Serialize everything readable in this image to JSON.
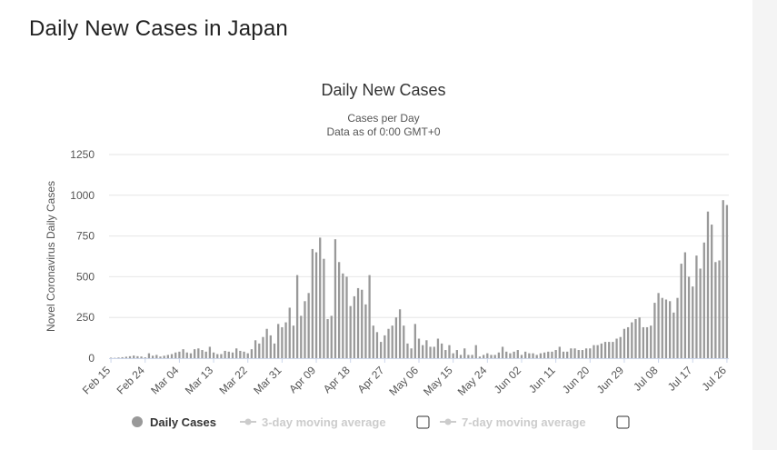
{
  "page": {
    "title": "Daily New Cases in Japan"
  },
  "chart_data": {
    "type": "bar",
    "title": "Daily New Cases",
    "subtitle_lines": [
      "Cases per Day",
      "Data as of 0:00 GMT+0"
    ],
    "ylabel": "Novel Coronavirus Daily Cases",
    "xlabel": "",
    "ylim": [
      0,
      1250
    ],
    "yticks": [
      0,
      250,
      500,
      750,
      1000,
      1250
    ],
    "grid": true,
    "legend_position": "bottom",
    "bar_color": "#999999",
    "start_date": "Feb 15",
    "xtick_labels": [
      "Feb 15",
      "Feb 24",
      "Mar 04",
      "Mar 13",
      "Mar 22",
      "Mar 31",
      "Apr 09",
      "Apr 18",
      "Apr 27",
      "May 06",
      "May 15",
      "May 24",
      "Jun 02",
      "Jun 11",
      "Jun 20",
      "Jun 29",
      "Jul 08",
      "Jul 17",
      "Jul 26"
    ],
    "legend": [
      {
        "label": "Daily Cases",
        "active": true,
        "color": "#999999"
      },
      {
        "label": "3-day moving average",
        "active": false,
        "color": "#cccccc"
      },
      {
        "label": "7-day moving average",
        "active": false,
        "color": "#cccccc"
      }
    ],
    "values": [
      3,
      2,
      4,
      6,
      9,
      12,
      16,
      12,
      10,
      5,
      30,
      15,
      20,
      10,
      15,
      20,
      25,
      35,
      40,
      55,
      35,
      30,
      55,
      60,
      50,
      40,
      70,
      35,
      25,
      25,
      45,
      40,
      35,
      60,
      45,
      40,
      30,
      55,
      110,
      90,
      130,
      180,
      140,
      90,
      210,
      190,
      220,
      310,
      200,
      510,
      260,
      350,
      400,
      670,
      650,
      740,
      610,
      240,
      260,
      730,
      590,
      520,
      500,
      320,
      380,
      430,
      420,
      330,
      510,
      200,
      160,
      100,
      140,
      180,
      200,
      250,
      300,
      200,
      90,
      60,
      210,
      120,
      80,
      110,
      70,
      70,
      120,
      90,
      50,
      80,
      30,
      50,
      20,
      60,
      20,
      20,
      80,
      10,
      20,
      30,
      20,
      20,
      35,
      70,
      40,
      30,
      40,
      50,
      20,
      40,
      30,
      30,
      20,
      30,
      35,
      40,
      40,
      50,
      70,
      40,
      40,
      60,
      60,
      50,
      50,
      60,
      60,
      80,
      80,
      90,
      100,
      100,
      100,
      120,
      130,
      180,
      190,
      220,
      240,
      250,
      190,
      190,
      200,
      340,
      400,
      370,
      360,
      350,
      280,
      370,
      580,
      650,
      500,
      440,
      630,
      550,
      710,
      900,
      820,
      590,
      600,
      970,
      940
    ]
  }
}
